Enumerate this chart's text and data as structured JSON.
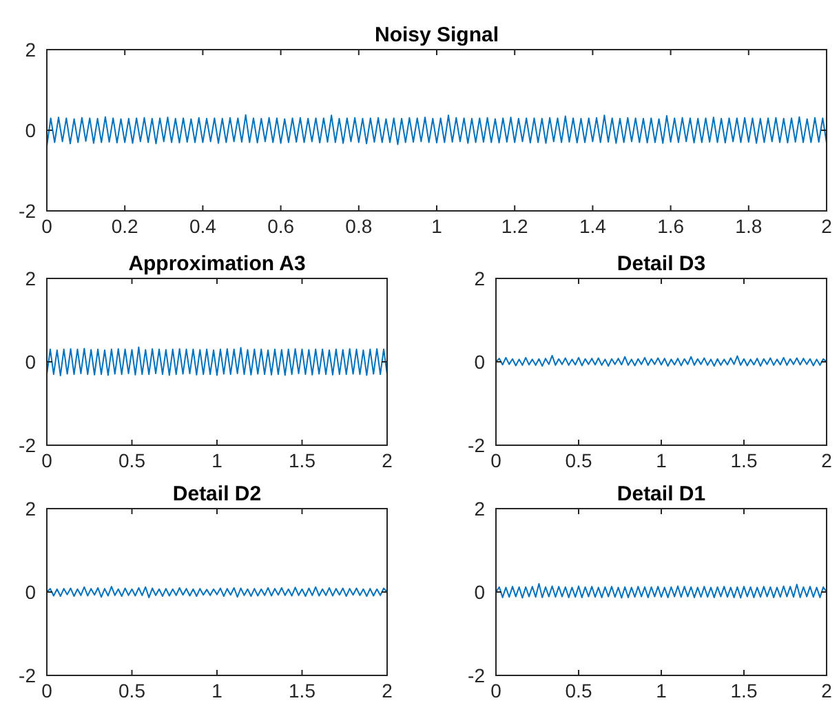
{
  "chart_data": [
    {
      "type": "line",
      "title": "Noisy Signal",
      "xlim": [
        0,
        2
      ],
      "xticks": [
        0,
        0.2,
        0.4,
        0.6,
        0.8,
        1,
        1.2,
        1.4,
        1.6,
        1.8,
        2
      ],
      "ylim": [
        -2,
        2
      ],
      "yticks": [
        -2,
        0,
        2
      ],
      "x": [
        0,
        0.01,
        0.02,
        0.03,
        0.04,
        0.05,
        0.06,
        0.07,
        0.08,
        0.09,
        0.1,
        0.11,
        0.12,
        0.13,
        0.14,
        0.15,
        0.16,
        0.17,
        0.18,
        0.19,
        0.2,
        0.21,
        0.22,
        0.23,
        0.24,
        0.25,
        0.26,
        0.27,
        0.28,
        0.29,
        0.3,
        0.31,
        0.32,
        0.33,
        0.34,
        0.35,
        0.36,
        0.37,
        0.38,
        0.39,
        0.4,
        0.41,
        0.42,
        0.43,
        0.44,
        0.45,
        0.46,
        0.47,
        0.48,
        0.49,
        0.5,
        0.51,
        0.52,
        0.53,
        0.54,
        0.55,
        0.56,
        0.57,
        0.58,
        0.59,
        0.6,
        0.61,
        0.62,
        0.63,
        0.64,
        0.65,
        0.66,
        0.67,
        0.68,
        0.69,
        0.7,
        0.71,
        0.72,
        0.73,
        0.74,
        0.75,
        0.76,
        0.77,
        0.78,
        0.79,
        0.8,
        0.81,
        0.82,
        0.83,
        0.84,
        0.85,
        0.86,
        0.87,
        0.88,
        0.89,
        0.9,
        0.91,
        0.92,
        0.93,
        0.94,
        0.95,
        0.96,
        0.97,
        0.98,
        0.99,
        1,
        1.01,
        1.02,
        1.03,
        1.04,
        1.05,
        1.06,
        1.07,
        1.08,
        1.09,
        1.1,
        1.11,
        1.12,
        1.13,
        1.14,
        1.15,
        1.16,
        1.17,
        1.18,
        1.19,
        1.2,
        1.21,
        1.22,
        1.23,
        1.24,
        1.25,
        1.26,
        1.27,
        1.28,
        1.29,
        1.3,
        1.31,
        1.32,
        1.33,
        1.34,
        1.35,
        1.36,
        1.37,
        1.38,
        1.39,
        1.4,
        1.41,
        1.42,
        1.43,
        1.44,
        1.45,
        1.46,
        1.47,
        1.48,
        1.49,
        1.5,
        1.51,
        1.52,
        1.53,
        1.54,
        1.55,
        1.56,
        1.57,
        1.58,
        1.59,
        1.6,
        1.61,
        1.62,
        1.63,
        1.64,
        1.65,
        1.66,
        1.67,
        1.68,
        1.69,
        1.7,
        1.71,
        1.72,
        1.73,
        1.74,
        1.75,
        1.76,
        1.77,
        1.78,
        1.79,
        1.8,
        1.81,
        1.82,
        1.83,
        1.84,
        1.85,
        1.86,
        1.87,
        1.88,
        1.89,
        1.9,
        1.91,
        1.92,
        1.93,
        1.94,
        1.95,
        1.96,
        1.97,
        1.98,
        1.99,
        2
      ],
      "series": [
        {
          "color": "#0072bd",
          "values": [
            -0.4,
            0.3,
            -0.3,
            0.32,
            -0.28,
            0.3,
            -0.33,
            0.28,
            -0.3,
            0.31,
            -0.27,
            0.3,
            -0.32,
            0.29,
            -0.3,
            0.33,
            -0.29,
            0.3,
            -0.31,
            0.28,
            -0.3,
            0.29,
            -0.32,
            0.3,
            -0.28,
            0.31,
            -0.3,
            0.29,
            -0.33,
            0.3,
            -0.28,
            0.32,
            -0.3,
            0.29,
            -0.31,
            0.3,
            -0.29,
            0.28,
            -0.3,
            0.31,
            -0.3,
            0.29,
            -0.28,
            0.3,
            -0.32,
            0.29,
            -0.3,
            0.31,
            -0.28,
            0.3,
            -0.29,
            0.38,
            -0.3,
            0.3,
            -0.31,
            0.29,
            -0.28,
            0.31,
            -0.3,
            0.3,
            -0.32,
            0.28,
            -0.3,
            0.3,
            -0.29,
            0.31,
            -0.3,
            0.29,
            -0.28,
            0.3,
            -0.31,
            0.3,
            -0.29,
            0.37,
            -0.3,
            0.29,
            -0.32,
            0.3,
            -0.28,
            0.31,
            -0.3,
            0.29,
            -0.33,
            0.3,
            -0.29,
            0.31,
            -0.3,
            0.28,
            -0.3,
            0.3,
            -0.35,
            0.29,
            -0.3,
            0.31,
            -0.29,
            0.3,
            -0.28,
            0.32,
            -0.3,
            0.29,
            -0.31,
            0.3,
            -0.3,
            0.37,
            -0.29,
            0.31,
            -0.28,
            0.3,
            -0.32,
            0.29,
            -0.3,
            0.3,
            -0.29,
            0.31,
            -0.3,
            0.28,
            -0.31,
            0.3,
            -0.29,
            0.32,
            -0.3,
            0.29,
            -0.28,
            0.3,
            -0.31,
            0.3,
            -0.3,
            0.29,
            -0.32,
            0.31,
            -0.28,
            0.3,
            -0.3,
            0.35,
            -0.29,
            0.3,
            -0.31,
            0.29,
            -0.3,
            0.3,
            -0.28,
            0.31,
            -0.3,
            0.37,
            -0.29,
            0.3,
            -0.32,
            0.29,
            -0.3,
            0.31,
            -0.28,
            0.3,
            -0.3,
            0.29,
            -0.31,
            0.3,
            -0.3,
            0.28,
            -0.32,
            0.36,
            -0.29,
            0.3,
            -0.3,
            0.31,
            -0.28,
            0.3,
            -0.31,
            0.29,
            -0.3,
            0.3,
            -0.29,
            0.32,
            -0.3,
            0.29,
            -0.31,
            0.3,
            -0.28,
            0.3,
            -0.3,
            0.31,
            -0.29,
            0.3,
            -0.32,
            0.29,
            -0.3,
            0.3,
            -0.28,
            0.31,
            -0.3,
            0.29,
            -0.31,
            0.3,
            -0.29,
            0.33,
            -0.3,
            0.28,
            -0.3,
            0.31,
            -0.29,
            0.3,
            -0.32
          ]
        }
      ]
    },
    {
      "type": "line",
      "title": "Approximation A3",
      "xlim": [
        0,
        2
      ],
      "xticks": [
        0,
        0.5,
        1,
        1.5,
        2
      ],
      "ylim": [
        -2,
        2
      ],
      "yticks": [
        -2,
        0,
        2
      ],
      "x": [
        0,
        0.02,
        0.04,
        0.06,
        0.08,
        0.1,
        0.12,
        0.14,
        0.16,
        0.18,
        0.2,
        0.22,
        0.24,
        0.26,
        0.28,
        0.3,
        0.32,
        0.34,
        0.36,
        0.38,
        0.4,
        0.42,
        0.44,
        0.46,
        0.48,
        0.5,
        0.52,
        0.54,
        0.56,
        0.58,
        0.6,
        0.62,
        0.64,
        0.66,
        0.68,
        0.7,
        0.72,
        0.74,
        0.76,
        0.78,
        0.8,
        0.82,
        0.84,
        0.86,
        0.88,
        0.9,
        0.92,
        0.94,
        0.96,
        0.98,
        1,
        1.02,
        1.04,
        1.06,
        1.08,
        1.1,
        1.12,
        1.14,
        1.16,
        1.18,
        1.2,
        1.22,
        1.24,
        1.26,
        1.28,
        1.3,
        1.32,
        1.34,
        1.36,
        1.38,
        1.4,
        1.42,
        1.44,
        1.46,
        1.48,
        1.5,
        1.52,
        1.54,
        1.56,
        1.58,
        1.6,
        1.62,
        1.64,
        1.66,
        1.68,
        1.7,
        1.72,
        1.74,
        1.76,
        1.78,
        1.8,
        1.82,
        1.84,
        1.86,
        1.88,
        1.9,
        1.92,
        1.94,
        1.96,
        1.98,
        2
      ],
      "series": [
        {
          "color": "#0072bd",
          "values": [
            -0.3,
            0.3,
            -0.3,
            0.28,
            -0.33,
            0.3,
            -0.29,
            0.31,
            -0.3,
            0.3,
            -0.28,
            0.32,
            -0.3,
            0.29,
            -0.31,
            0.3,
            -0.3,
            0.28,
            -0.32,
            0.3,
            -0.29,
            0.31,
            -0.3,
            0.3,
            -0.28,
            0.29,
            -0.31,
            0.35,
            -0.3,
            0.29,
            -0.3,
            0.31,
            -0.28,
            0.3,
            -0.3,
            0.29,
            -0.32,
            0.3,
            -0.3,
            0.31,
            -0.29,
            0.3,
            -0.28,
            0.3,
            -0.31,
            0.29,
            -0.3,
            0.3,
            -0.3,
            0.28,
            -0.32,
            0.3,
            -0.29,
            0.31,
            -0.3,
            0.3,
            -0.28,
            0.34,
            -0.3,
            0.29,
            -0.31,
            0.3,
            -0.29,
            0.3,
            -0.3,
            0.28,
            -0.31,
            0.3,
            -0.3,
            0.29,
            -0.32,
            0.3,
            -0.3,
            0.31,
            -0.28,
            0.3,
            -0.3,
            0.29,
            -0.31,
            0.3,
            -0.29,
            0.3,
            -0.3,
            0.28,
            -0.31,
            0.3,
            -0.3,
            0.29,
            -0.3,
            0.31,
            -0.29,
            0.3,
            -0.3,
            0.28,
            -0.32,
            0.3,
            -0.29,
            0.31,
            -0.3,
            0.3,
            -0.3
          ]
        }
      ]
    },
    {
      "type": "line",
      "title": "Detail D3",
      "xlim": [
        0,
        2
      ],
      "xticks": [
        0,
        0.5,
        1,
        1.5,
        2
      ],
      "ylim": [
        -2,
        2
      ],
      "yticks": [
        -2,
        0,
        2
      ],
      "x": [
        0,
        0.02,
        0.04,
        0.06,
        0.08,
        0.1,
        0.12,
        0.14,
        0.16,
        0.18,
        0.2,
        0.22,
        0.24,
        0.26,
        0.28,
        0.3,
        0.32,
        0.34,
        0.36,
        0.38,
        0.4,
        0.42,
        0.44,
        0.46,
        0.48,
        0.5,
        0.52,
        0.54,
        0.56,
        0.58,
        0.6,
        0.62,
        0.64,
        0.66,
        0.68,
        0.7,
        0.72,
        0.74,
        0.76,
        0.78,
        0.8,
        0.82,
        0.84,
        0.86,
        0.88,
        0.9,
        0.92,
        0.94,
        0.96,
        0.98,
        1,
        1.02,
        1.04,
        1.06,
        1.08,
        1.1,
        1.12,
        1.14,
        1.16,
        1.18,
        1.2,
        1.22,
        1.24,
        1.26,
        1.28,
        1.3,
        1.32,
        1.34,
        1.36,
        1.38,
        1.4,
        1.42,
        1.44,
        1.46,
        1.48,
        1.5,
        1.52,
        1.54,
        1.56,
        1.58,
        1.6,
        1.62,
        1.64,
        1.66,
        1.68,
        1.7,
        1.72,
        1.74,
        1.76,
        1.78,
        1.8,
        1.82,
        1.84,
        1.86,
        1.88,
        1.9,
        1.92,
        1.94,
        1.96,
        1.98,
        2
      ],
      "series": [
        {
          "color": "#0072bd",
          "values": [
            0,
            0.08,
            -0.07,
            0.1,
            -0.06,
            0.07,
            -0.09,
            0.06,
            -0.08,
            0.1,
            -0.07,
            0.06,
            -0.08,
            0.07,
            -0.1,
            0.08,
            -0.06,
            0.15,
            -0.08,
            0.07,
            -0.06,
            0.09,
            -0.08,
            0.06,
            -0.07,
            0.1,
            -0.09,
            0.07,
            -0.06,
            0.08,
            -0.07,
            0.09,
            -0.08,
            0.06,
            -0.1,
            0.07,
            -0.06,
            0.08,
            -0.07,
            0.12,
            -0.08,
            0.06,
            -0.09,
            0.07,
            -0.06,
            0.1,
            -0.08,
            0.07,
            -0.06,
            0.09,
            -0.07,
            0.08,
            -0.1,
            0.06,
            -0.07,
            0.08,
            -0.09,
            0.07,
            -0.06,
            0.12,
            -0.08,
            0.07,
            -0.06,
            0.09,
            -0.08,
            0.06,
            -0.1,
            0.07,
            -0.08,
            0.06,
            -0.07,
            0.09,
            -0.06,
            0.14,
            -0.08,
            0.07,
            -0.09,
            0.06,
            -0.07,
            0.08,
            -0.1,
            0.07,
            -0.06,
            0.09,
            -0.08,
            0.06,
            -0.07,
            0.1,
            -0.08,
            0.07,
            -0.06,
            0.09,
            -0.07,
            0.08,
            -0.06,
            0.07,
            -0.09,
            0.06,
            -0.08,
            0.07,
            0
          ]
        }
      ]
    },
    {
      "type": "line",
      "title": "Detail D2",
      "xlim": [
        0,
        2
      ],
      "xticks": [
        0,
        0.5,
        1,
        1.5,
        2
      ],
      "ylim": [
        -2,
        2
      ],
      "yticks": [
        -2,
        0,
        2
      ],
      "x": [
        0,
        0.02,
        0.04,
        0.06,
        0.08,
        0.1,
        0.12,
        0.14,
        0.16,
        0.18,
        0.2,
        0.22,
        0.24,
        0.26,
        0.28,
        0.3,
        0.32,
        0.34,
        0.36,
        0.38,
        0.4,
        0.42,
        0.44,
        0.46,
        0.48,
        0.5,
        0.52,
        0.54,
        0.56,
        0.58,
        0.6,
        0.62,
        0.64,
        0.66,
        0.68,
        0.7,
        0.72,
        0.74,
        0.76,
        0.78,
        0.8,
        0.82,
        0.84,
        0.86,
        0.88,
        0.9,
        0.92,
        0.94,
        0.96,
        0.98,
        1,
        1.02,
        1.04,
        1.06,
        1.08,
        1.1,
        1.12,
        1.14,
        1.16,
        1.18,
        1.2,
        1.22,
        1.24,
        1.26,
        1.28,
        1.3,
        1.32,
        1.34,
        1.36,
        1.38,
        1.4,
        1.42,
        1.44,
        1.46,
        1.48,
        1.5,
        1.52,
        1.54,
        1.56,
        1.58,
        1.6,
        1.62,
        1.64,
        1.66,
        1.68,
        1.7,
        1.72,
        1.74,
        1.76,
        1.78,
        1.8,
        1.82,
        1.84,
        1.86,
        1.88,
        1.9,
        1.92,
        1.94,
        1.96,
        1.98,
        2
      ],
      "series": [
        {
          "color": "#0072bd",
          "values": [
            0,
            0.08,
            -0.09,
            0.07,
            -0.1,
            0.08,
            -0.06,
            0.09,
            -0.1,
            0.07,
            -0.08,
            0.12,
            -0.09,
            0.08,
            -0.07,
            0.1,
            -0.12,
            0.08,
            -0.09,
            0.13,
            -0.08,
            0.07,
            -0.1,
            0.09,
            -0.08,
            0.07,
            -0.09,
            0.1,
            -0.08,
            0.12,
            -0.13,
            0.09,
            -0.08,
            0.07,
            -0.1,
            0.08,
            -0.09,
            0.07,
            -0.08,
            0.1,
            -0.07,
            0.08,
            -0.09,
            0.07,
            -0.1,
            0.08,
            -0.07,
            0.06,
            -0.08,
            0.07,
            -0.06,
            0.09,
            -0.1,
            0.08,
            -0.07,
            0.1,
            -0.12,
            0.09,
            -0.08,
            0.07,
            -0.1,
            0.08,
            -0.09,
            0.07,
            -0.08,
            0.1,
            -0.09,
            0.08,
            -0.07,
            0.1,
            -0.08,
            0.07,
            -0.09,
            0.11,
            -0.08,
            0.07,
            -0.1,
            0.09,
            -0.08,
            0.12,
            -0.09,
            0.07,
            -0.08,
            0.1,
            -0.09,
            0.08,
            -0.07,
            0.09,
            -0.1,
            0.08,
            -0.07,
            0.09,
            -0.08,
            0.07,
            -0.1,
            0.08,
            -0.09,
            0.07,
            -0.08,
            0.09,
            0
          ]
        }
      ]
    },
    {
      "type": "line",
      "title": "Detail D1",
      "xlim": [
        0,
        2
      ],
      "xticks": [
        0,
        0.5,
        1,
        1.5,
        2
      ],
      "ylim": [
        -2,
        2
      ],
      "yticks": [
        -2,
        0,
        2
      ],
      "x": [
        0,
        0.02,
        0.04,
        0.06,
        0.08,
        0.1,
        0.12,
        0.14,
        0.16,
        0.18,
        0.2,
        0.22,
        0.24,
        0.26,
        0.28,
        0.3,
        0.32,
        0.34,
        0.36,
        0.38,
        0.4,
        0.42,
        0.44,
        0.46,
        0.48,
        0.5,
        0.52,
        0.54,
        0.56,
        0.58,
        0.6,
        0.62,
        0.64,
        0.66,
        0.68,
        0.7,
        0.72,
        0.74,
        0.76,
        0.78,
        0.8,
        0.82,
        0.84,
        0.86,
        0.88,
        0.9,
        0.92,
        0.94,
        0.96,
        0.98,
        1,
        1.02,
        1.04,
        1.06,
        1.08,
        1.1,
        1.12,
        1.14,
        1.16,
        1.18,
        1.2,
        1.22,
        1.24,
        1.26,
        1.28,
        1.3,
        1.32,
        1.34,
        1.36,
        1.38,
        1.4,
        1.42,
        1.44,
        1.46,
        1.48,
        1.5,
        1.52,
        1.54,
        1.56,
        1.58,
        1.6,
        1.62,
        1.64,
        1.66,
        1.68,
        1.7,
        1.72,
        1.74,
        1.76,
        1.78,
        1.8,
        1.82,
        1.84,
        1.86,
        1.88,
        1.9,
        1.92,
        1.94,
        1.96,
        1.98,
        2
      ],
      "series": [
        {
          "color": "#0072bd",
          "values": [
            0,
            0.12,
            -0.13,
            0.11,
            -0.12,
            0.13,
            -0.11,
            0.12,
            -0.14,
            0.12,
            -0.11,
            0.13,
            -0.12,
            0.2,
            -0.13,
            0.12,
            -0.11,
            0.14,
            -0.12,
            0.13,
            -0.11,
            0.12,
            -0.13,
            0.11,
            -0.12,
            0.14,
            -0.13,
            0.12,
            -0.11,
            0.13,
            -0.12,
            0.11,
            -0.13,
            0.12,
            -0.11,
            0.13,
            -0.12,
            0.11,
            -0.14,
            0.12,
            -0.13,
            0.11,
            -0.12,
            0.13,
            -0.11,
            0.12,
            -0.13,
            0.12,
            -0.11,
            0.13,
            -0.12,
            0.11,
            -0.13,
            0.12,
            -0.11,
            0.14,
            -0.12,
            0.13,
            -0.11,
            0.12,
            -0.13,
            0.11,
            -0.12,
            0.13,
            -0.12,
            0.11,
            -0.13,
            0.12,
            -0.11,
            0.13,
            -0.12,
            0.11,
            -0.13,
            0.12,
            -0.14,
            0.13,
            -0.11,
            0.12,
            -0.13,
            0.11,
            -0.12,
            0.13,
            -0.11,
            0.12,
            -0.13,
            0.11,
            -0.12,
            0.14,
            -0.11,
            0.13,
            -0.12,
            0.18,
            -0.13,
            0.12,
            -0.11,
            0.13,
            -0.12,
            0.11,
            -0.13,
            0.12,
            0
          ]
        }
      ]
    }
  ]
}
